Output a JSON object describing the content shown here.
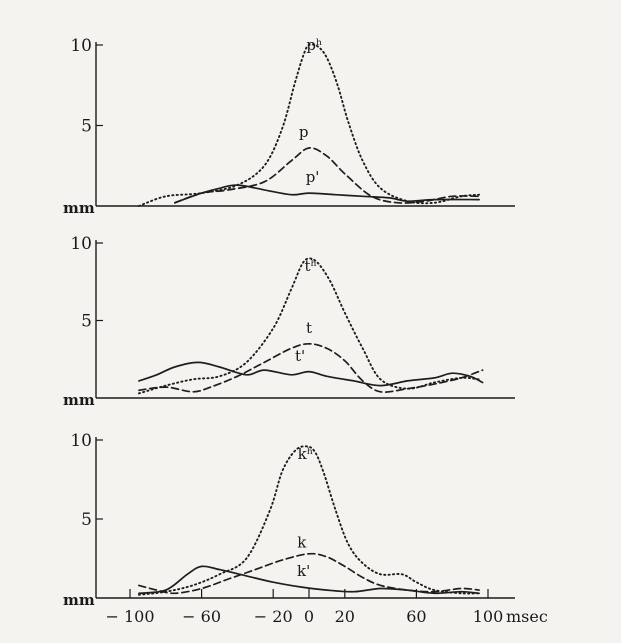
{
  "chart_data": [
    {
      "type": "line",
      "x_unit": "msec",
      "y_unit": "mm",
      "xlim": [
        -100,
        100
      ],
      "ylim": [
        0,
        10
      ],
      "yticks": [
        {
          "value": 10,
          "label": "10"
        },
        {
          "value": 5,
          "label": "5"
        }
      ],
      "baseline_label": "mm",
      "grid": false,
      "series": [
        {
          "name": "pʰ",
          "style": "dotted",
          "x": [
            -95,
            -80,
            -60,
            -40,
            -25,
            -15,
            -8,
            -3,
            0,
            5,
            10,
            16,
            22,
            30,
            40,
            55,
            70,
            85,
            95
          ],
          "y": [
            0.0,
            0.6,
            0.8,
            1.3,
            2.5,
            4.8,
            7.6,
            9.4,
            10.0,
            9.9,
            9.2,
            7.5,
            5.2,
            2.8,
            1.1,
            0.3,
            0.2,
            0.6,
            0.7
          ],
          "label_at": [
            3,
            9.7
          ]
        },
        {
          "name": "p",
          "style": "dashed",
          "x": [
            -75,
            -60,
            -45,
            -25,
            -10,
            0,
            10,
            20,
            35,
            50,
            65,
            80,
            95
          ],
          "y": [
            0.2,
            0.8,
            1.0,
            1.5,
            2.8,
            3.6,
            3.1,
            2.0,
            0.6,
            0.2,
            0.3,
            0.6,
            0.6
          ],
          "label_at": [
            -3,
            4.3
          ]
        },
        {
          "name": "p'",
          "style": "solid",
          "x": [
            -75,
            -60,
            -50,
            -40,
            -25,
            -10,
            0,
            15,
            30,
            45,
            55,
            70,
            95
          ],
          "y": [
            0.2,
            0.8,
            1.1,
            1.3,
            1.0,
            0.7,
            0.8,
            0.7,
            0.6,
            0.5,
            0.3,
            0.4,
            0.4
          ],
          "label_at": [
            2,
            1.5
          ]
        }
      ]
    },
    {
      "type": "line",
      "x_unit": "msec",
      "y_unit": "mm",
      "xlim": [
        -100,
        100
      ],
      "ylim": [
        0,
        10
      ],
      "yticks": [
        {
          "value": 10,
          "label": "10"
        },
        {
          "value": 5,
          "label": "5"
        }
      ],
      "baseline_label": "mm",
      "grid": false,
      "series": [
        {
          "name": "tʰ",
          "style": "dotted",
          "x": [
            -95,
            -80,
            -65,
            -50,
            -35,
            -20,
            -10,
            -4,
            0,
            5,
            12,
            20,
            30,
            40,
            55,
            70,
            85,
            95
          ],
          "y": [
            0.3,
            0.8,
            1.2,
            1.4,
            2.3,
            4.5,
            7.0,
            8.6,
            9.0,
            8.7,
            7.5,
            5.5,
            3.2,
            1.2,
            0.6,
            1.0,
            1.3,
            1.2
          ],
          "label_at": [
            1,
            8.2
          ]
        },
        {
          "name": "t",
          "style": "dashed",
          "x": [
            -95,
            -80,
            -65,
            -55,
            -40,
            -25,
            -10,
            0,
            10,
            20,
            30,
            40,
            55,
            70,
            85,
            97
          ],
          "y": [
            0.5,
            0.7,
            0.4,
            0.7,
            1.4,
            2.3,
            3.2,
            3.5,
            3.2,
            2.4,
            1.1,
            0.4,
            0.6,
            0.9,
            1.3,
            1.8
          ],
          "label_at": [
            0,
            4.2
          ]
        },
        {
          "name": "t'",
          "style": "solid",
          "x": [
            -95,
            -85,
            -75,
            -62,
            -50,
            -35,
            -25,
            -10,
            0,
            10,
            25,
            40,
            55,
            70,
            80,
            90,
            97
          ],
          "y": [
            1.1,
            1.5,
            2.0,
            2.3,
            2.0,
            1.5,
            1.8,
            1.5,
            1.7,
            1.4,
            1.1,
            0.8,
            1.1,
            1.3,
            1.6,
            1.4,
            1.0
          ],
          "label_at": [
            -5,
            2.4
          ]
        }
      ]
    },
    {
      "type": "line",
      "x_unit": "msec",
      "y_unit": "mm",
      "xlim": [
        -100,
        100
      ],
      "ylim": [
        0,
        10
      ],
      "yticks": [
        {
          "value": 10,
          "label": "10"
        },
        {
          "value": 5,
          "label": "5"
        }
      ],
      "baseline_label": "mm",
      "grid": false,
      "xticks": [
        {
          "value": -100,
          "label": "− 100"
        },
        {
          "value": -60,
          "label": "− 60"
        },
        {
          "value": -20,
          "label": "− 20"
        },
        {
          "value": 0,
          "label": "0"
        },
        {
          "value": 20,
          "label": "20"
        },
        {
          "value": 60,
          "label": "60"
        },
        {
          "value": 100,
          "label": "100"
        }
      ],
      "xlabel": "msec",
      "series": [
        {
          "name": "kʰ",
          "style": "dotted",
          "x": [
            -95,
            -80,
            -65,
            -50,
            -35,
            -22,
            -15,
            -8,
            -2,
            3,
            8,
            15,
            22,
            30,
            40,
            52,
            60,
            70,
            85,
            95
          ],
          "y": [
            0.2,
            0.4,
            0.8,
            1.5,
            2.5,
            5.5,
            8.0,
            9.3,
            9.6,
            9.3,
            8.0,
            5.5,
            3.4,
            2.2,
            1.5,
            1.5,
            1.0,
            0.5,
            0.3,
            0.3
          ],
          "label_at": [
            -2,
            8.8
          ]
        },
        {
          "name": "k",
          "style": "dashed",
          "x": [
            -95,
            -85,
            -75,
            -60,
            -45,
            -30,
            -15,
            0,
            10,
            20,
            30,
            40,
            55,
            70,
            85,
            95
          ],
          "y": [
            0.8,
            0.5,
            0.3,
            0.6,
            1.2,
            1.8,
            2.4,
            2.8,
            2.6,
            2.0,
            1.3,
            0.8,
            0.5,
            0.4,
            0.6,
            0.5
          ],
          "label_at": [
            -4,
            3.2
          ]
        },
        {
          "name": "k'",
          "style": "solid",
          "x": [
            -95,
            -80,
            -68,
            -60,
            -50,
            -35,
            -20,
            -5,
            10,
            25,
            40,
            55,
            70,
            85,
            95
          ],
          "y": [
            0.3,
            0.5,
            1.5,
            2.0,
            1.8,
            1.4,
            1.0,
            0.7,
            0.5,
            0.4,
            0.6,
            0.5,
            0.3,
            0.4,
            0.3
          ],
          "label_at": [
            -3,
            1.4
          ]
        }
      ]
    }
  ]
}
